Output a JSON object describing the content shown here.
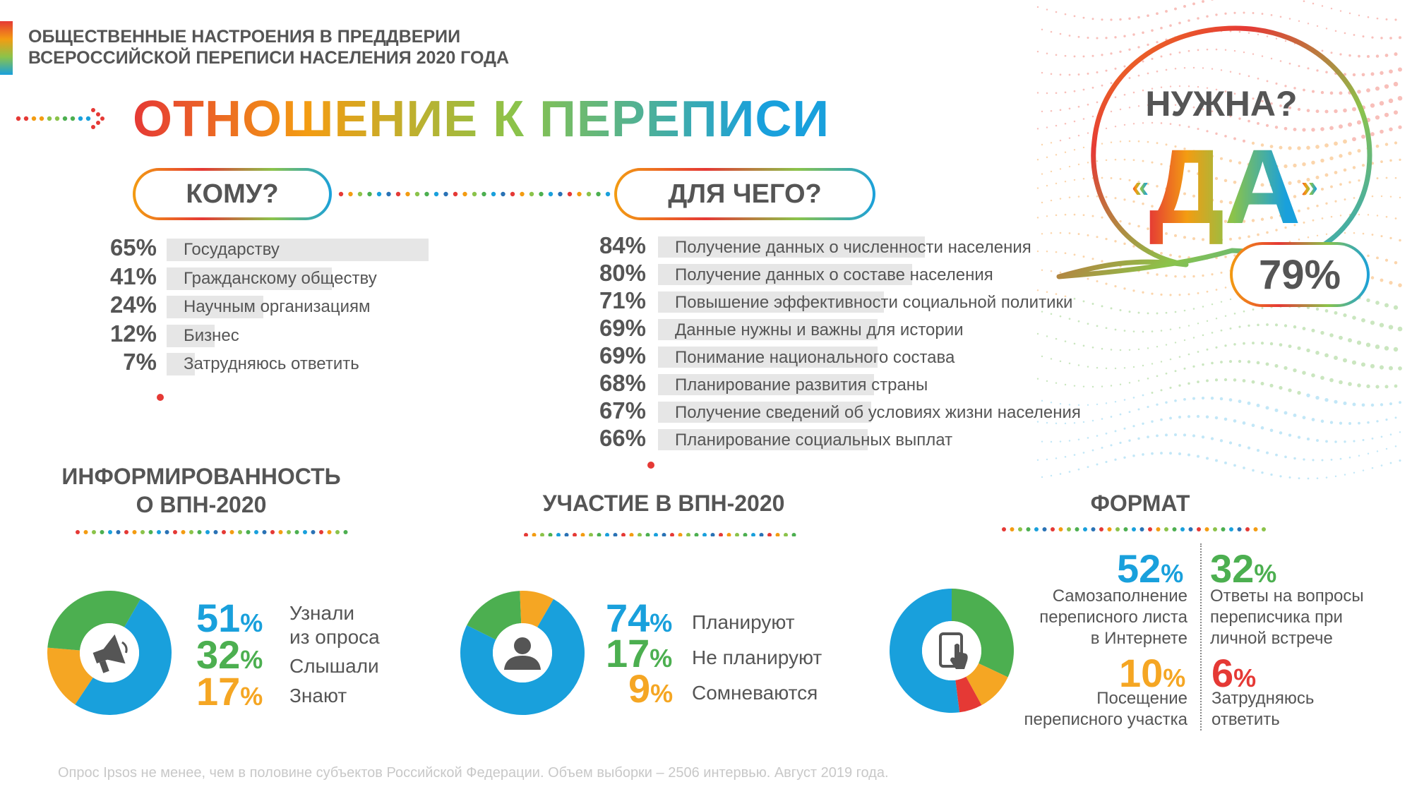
{
  "header": {
    "line1": "ОБЩЕСТВЕННЫЕ НАСТРОЕНИЯ В ПРЕДДВЕРИИ",
    "line2": "ВСЕРОССИЙСКОЙ ПЕРЕПИСИ НАСЕЛЕНИЯ 2020 ГОДА"
  },
  "title": "ОТНОШЕНИЕ К ПЕРЕПИСИ",
  "bubble": {
    "question": "НУЖНА?",
    "answer": "ДА",
    "open_quote": "«",
    "close_quote": "»",
    "percent": "79%"
  },
  "colors": {
    "blue": "#19a0dc",
    "green": "#4caf50",
    "orange": "#f5a623",
    "red": "#e53935",
    "gray_bar": "#e6e6e6",
    "text": "#555555"
  },
  "icons": {
    "informed": "megaphone-icon",
    "participation": "person-icon",
    "format": "tablet-touch-icon",
    "arrow": "dotted-arrow-icon"
  },
  "chart_data": [
    {
      "type": "bar",
      "title": "КОМУ?",
      "categories": [
        "Государству",
        "Гражданскому обществу",
        "Научным организациям",
        "Бизнес",
        "Затрудняюсь ответить"
      ],
      "values": [
        65,
        41,
        24,
        12,
        7
      ],
      "value_labels": [
        "65%",
        "41%",
        "24%",
        "12%",
        "7%"
      ]
    },
    {
      "type": "bar",
      "title": "ДЛЯ ЧЕГО?",
      "categories": [
        "Получение данных о численности населения",
        "Получение данных о составе населения",
        "Повышение эффективности социальной политики",
        "Данные нужны и важны для истории",
        "Понимание национального состава",
        "Планирование развития страны",
        "Получение сведений об условиях жизни населения",
        "Планирование социальных выплат"
      ],
      "values": [
        84,
        80,
        71,
        69,
        69,
        68,
        67,
        66
      ],
      "value_labels": [
        "84%",
        "80%",
        "71%",
        "69%",
        "69%",
        "68%",
        "67%",
        "66%"
      ]
    },
    {
      "type": "pie",
      "title": "ИНФОРМИРОВАННОСТЬ О ВПН-2020",
      "title_lines": [
        "ИНФОРМИРОВАННОСТЬ",
        "О ВПН-2020"
      ],
      "slices": [
        {
          "label_lines": [
            "Узнали",
            "из опроса"
          ],
          "value": 51,
          "color": "#19a0dc"
        },
        {
          "label_lines": [
            "Слышали"
          ],
          "value": 32,
          "color": "#4caf50"
        },
        {
          "label_lines": [
            "Знают"
          ],
          "value": 17,
          "color": "#f5a623"
        }
      ],
      "slice_order": [
        0,
        2,
        1
      ]
    },
    {
      "type": "pie",
      "title": "УЧАСТИЕ В ВПН-2020",
      "slices": [
        {
          "label_lines": [
            "Планируют"
          ],
          "value": 74,
          "color": "#19a0dc"
        },
        {
          "label_lines": [
            "Не планируют"
          ],
          "value": 17,
          "color": "#4caf50"
        },
        {
          "label_lines": [
            "Сомневаются"
          ],
          "value": 9,
          "color": "#f5a623"
        }
      ],
      "slice_order": [
        0,
        1,
        2
      ]
    },
    {
      "type": "pie",
      "title": "ФОРМАТ",
      "slices": [
        {
          "label_lines": [
            "Самозаполнение",
            "переписного листа",
            "в Интернете"
          ],
          "value": 52,
          "color": "#19a0dc"
        },
        {
          "label_lines": [
            "Ответы на вопросы",
            "переписчика при",
            "личной встрече"
          ],
          "value": 32,
          "color": "#4caf50"
        },
        {
          "label_lines": [
            "Посещение",
            "переписного участка"
          ],
          "value": 10,
          "color": "#f5a623"
        },
        {
          "label_lines": [
            "Затрудняюсь",
            "ответить"
          ],
          "value": 6,
          "color": "#e53935"
        }
      ],
      "slice_order": [
        1,
        2,
        3,
        0
      ]
    }
  ],
  "footnote": "Опрос Ipsos не менее, чем в половине субъектов Российской Федерации. Объем выборки – 2506 интервью. Август 2019 года."
}
